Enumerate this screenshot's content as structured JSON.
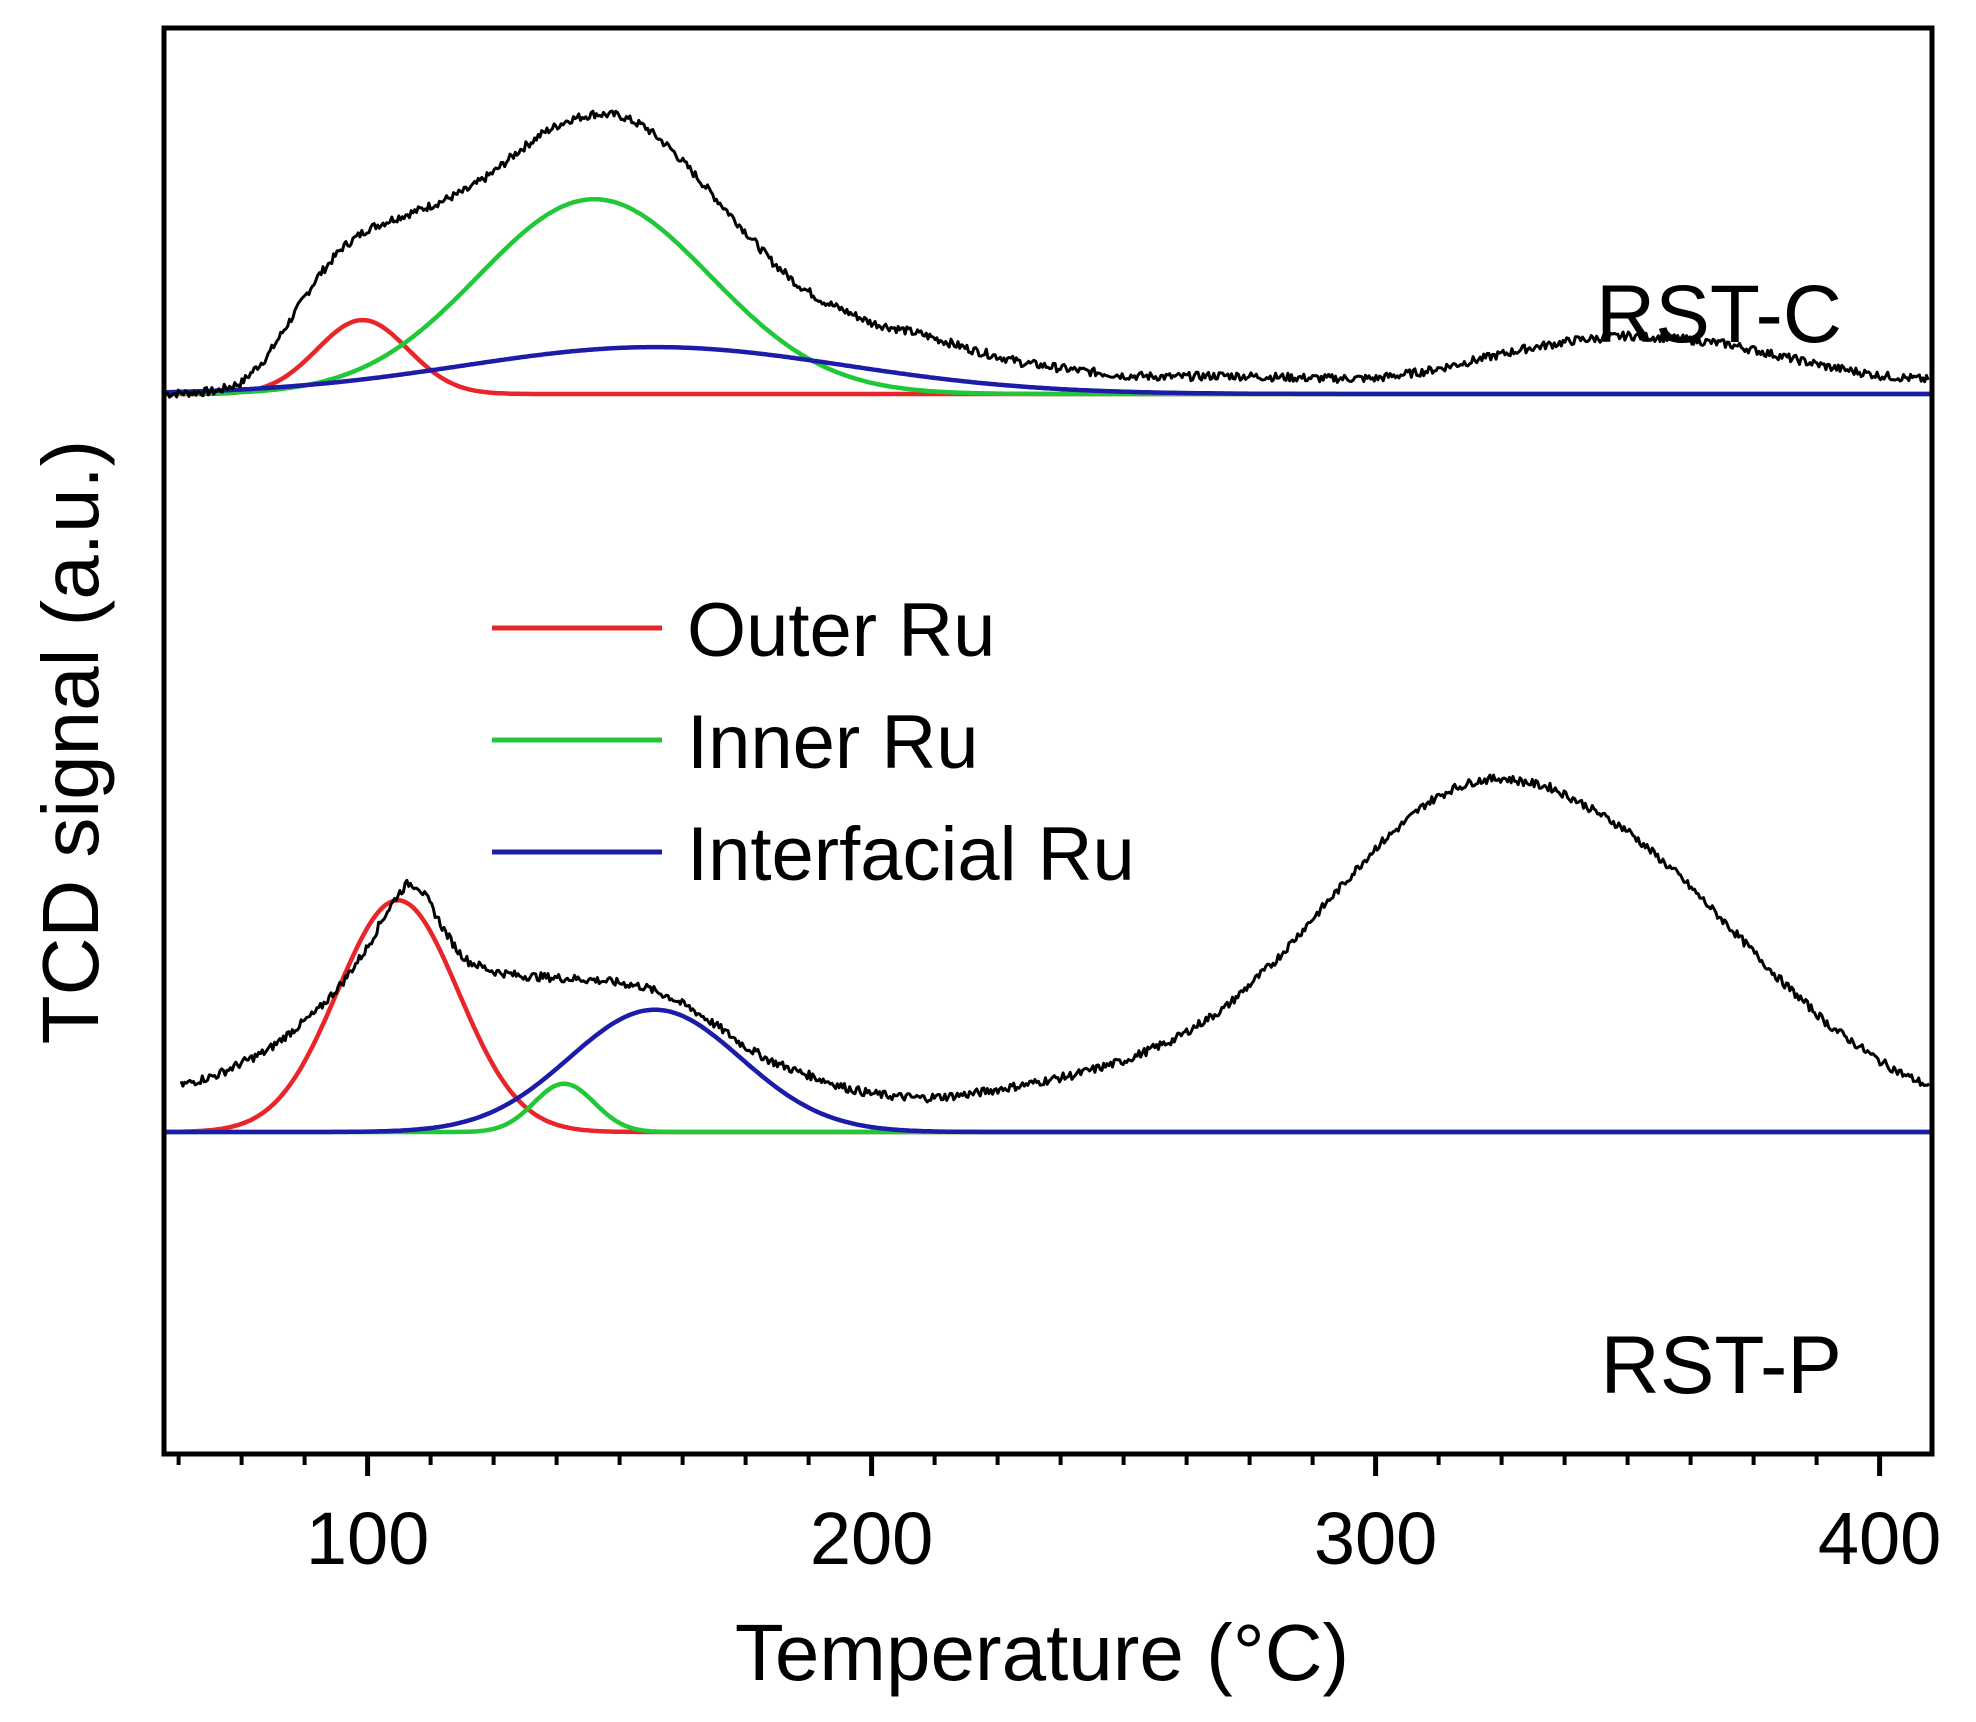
{
  "chart_data": {
    "type": "line",
    "title": "",
    "xlabel": "Temperature (°C)",
    "ylabel": "TCD signal (a.u.)",
    "xlim": [
      60,
      410
    ],
    "ylim": [
      0,
      1
    ],
    "xticks": [
      100,
      200,
      300,
      400
    ],
    "x_minor_step": 12.5,
    "grid": false,
    "legend": {
      "position": "center",
      "entries": [
        {
          "label": "Outer Ru",
          "color": "#e8262a"
        },
        {
          "label": "Inner Ru",
          "color": "#20c838"
        },
        {
          "label": "Interfacial Ru",
          "color": "#1c1ca8"
        }
      ]
    },
    "panels": [
      {
        "name": "RST-C",
        "label": "RST-C",
        "measured_color": "#000000",
        "baseline": 0.744,
        "measured": {
          "x": [
            60,
            70,
            75,
            80,
            85,
            90,
            95,
            100,
            105,
            110,
            115,
            120,
            125,
            130,
            135,
            140,
            145,
            150,
            155,
            160,
            165,
            170,
            175,
            180,
            185,
            190,
            200,
            210,
            220,
            230,
            240,
            250,
            260,
            270,
            280,
            290,
            300,
            310,
            320,
            330,
            340,
            350,
            360,
            370,
            380,
            390,
            400,
            410
          ],
          "y": [
            0.744,
            0.746,
            0.752,
            0.77,
            0.798,
            0.826,
            0.847,
            0.86,
            0.867,
            0.873,
            0.88,
            0.888,
            0.9,
            0.915,
            0.928,
            0.937,
            0.941,
            0.94,
            0.932,
            0.917,
            0.898,
            0.878,
            0.858,
            0.838,
            0.822,
            0.81,
            0.794,
            0.786,
            0.775,
            0.766,
            0.761,
            0.757,
            0.756,
            0.757,
            0.756,
            0.755,
            0.755,
            0.76,
            0.768,
            0.776,
            0.782,
            0.785,
            0.783,
            0.779,
            0.771,
            0.763,
            0.757,
            0.754
          ]
        },
        "series": [
          {
            "name": "Outer Ru",
            "color": "#e8262a",
            "amplitude": 0.052,
            "center": 99,
            "sigma": 9
          },
          {
            "name": "Inner Ru",
            "color": "#20c838",
            "amplitude": 0.137,
            "center": 145,
            "sigma": 23
          },
          {
            "name": "Interfacial Ru",
            "color": "#1c1ca8",
            "amplitude": 0.033,
            "center": 157,
            "sigma": 38
          }
        ]
      },
      {
        "name": "RST-P",
        "label": "RST-P",
        "measured_color": "#000000",
        "baseline": 0.225,
        "measured": {
          "x": [
            63,
            70,
            80,
            90,
            95,
            100,
            103,
            106,
            108,
            110,
            112,
            115,
            118,
            120,
            125,
            130,
            135,
            140,
            145,
            150,
            155,
            160,
            165,
            170,
            175,
            180,
            185,
            190,
            195,
            200,
            205,
            210,
            215,
            220,
            230,
            240,
            250,
            260,
            270,
            280,
            290,
            300,
            310,
            315,
            320,
            325,
            330,
            335,
            340,
            350,
            360,
            370,
            380,
            390,
            400,
            405,
            410
          ],
          "y": [
            0.258,
            0.265,
            0.282,
            0.31,
            0.33,
            0.355,
            0.375,
            0.392,
            0.4,
            0.398,
            0.388,
            0.368,
            0.352,
            0.345,
            0.338,
            0.335,
            0.334,
            0.333,
            0.332,
            0.33,
            0.327,
            0.32,
            0.31,
            0.298,
            0.285,
            0.275,
            0.268,
            0.262,
            0.256,
            0.252,
            0.25,
            0.249,
            0.25,
            0.252,
            0.258,
            0.265,
            0.275,
            0.29,
            0.312,
            0.345,
            0.385,
            0.425,
            0.456,
            0.466,
            0.472,
            0.474,
            0.471,
            0.467,
            0.458,
            0.437,
            0.406,
            0.37,
            0.333,
            0.3,
            0.275,
            0.265,
            0.257
          ]
        },
        "series": [
          {
            "name": "Outer Ru",
            "color": "#e8262a",
            "amplitude": 0.163,
            "center": 106,
            "sigma": 12
          },
          {
            "name": "Inner Ru",
            "color": "#20c838",
            "amplitude": 0.034,
            "center": 139,
            "sigma": 6
          },
          {
            "name": "Interfacial Ru",
            "color": "#1c1ca8",
            "amplitude": 0.086,
            "center": 157,
            "sigma": 17
          }
        ]
      }
    ]
  }
}
